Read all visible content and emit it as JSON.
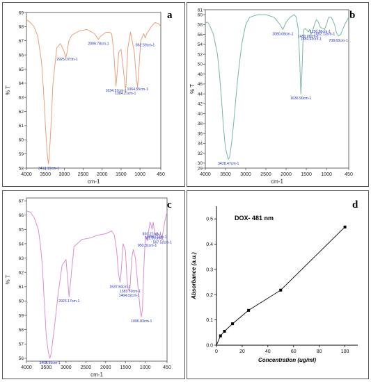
{
  "chart_data": [
    {
      "panel": "a",
      "type": "line",
      "xlabel": "cm-1",
      "ylabel": "% T",
      "xlim": [
        4000,
        450
      ],
      "ylim": [
        58,
        69
      ],
      "x_ticks": [
        4000,
        3500,
        3000,
        2500,
        2000,
        1500,
        1000,
        450
      ],
      "y_ticks": [
        58,
        59,
        60,
        61,
        62,
        63,
        64,
        65,
        66,
        67,
        68,
        69
      ],
      "series": [
        {
          "color": "#e8a07c",
          "x": [
            4000,
            3900,
            3800,
            3700,
            3600,
            3550,
            3500,
            3450,
            3420,
            3400,
            3350,
            3300,
            3200,
            3100,
            3000,
            2960,
            2925,
            2880,
            2800,
            2600,
            2400,
            2200,
            2100,
            2099,
            2050,
            1900,
            1800,
            1750,
            1700,
            1660,
            1634,
            1610,
            1560,
            1500,
            1450,
            1400,
            1384,
            1370,
            1320,
            1250,
            1150,
            1100,
            1064,
            1040,
            980,
            900,
            862,
            820,
            700,
            600,
            500,
            450
          ],
          "y": [
            68.5,
            68.3,
            68.0,
            67.3,
            65.5,
            63.5,
            61.0,
            59.0,
            58.3,
            58.7,
            61.0,
            64.0,
            66.5,
            66.8,
            66.2,
            65.8,
            66.2,
            67.0,
            67.4,
            67.7,
            67.8,
            67.5,
            67.1,
            67.1,
            67.3,
            67.6,
            67.6,
            67.5,
            66.5,
            64.8,
            63.8,
            64.5,
            66.2,
            66.4,
            65.2,
            64.0,
            63.6,
            63.8,
            66.5,
            67.6,
            66.2,
            64.5,
            63.7,
            64.5,
            67.0,
            67.5,
            67.2,
            67.5,
            68.0,
            68.3,
            68.2,
            68.0
          ]
        }
      ],
      "annotations": [
        {
          "label": "3412.19cm-1",
          "x": 3412,
          "y": 58.3
        },
        {
          "label": "2925.07cm-1",
          "x": 2925,
          "y": 66.0
        },
        {
          "label": "2099.78cm-1",
          "x": 2099,
          "y": 67.1
        },
        {
          "label": "1634.57cm-1",
          "x": 1634,
          "y": 63.8
        },
        {
          "label": "1384.21cm-1",
          "x": 1384,
          "y": 63.6
        },
        {
          "label": "1064.55cm-1",
          "x": 1064,
          "y": 63.9
        },
        {
          "label": "862.59cm-1",
          "x": 862,
          "y": 67.0
        }
      ]
    },
    {
      "panel": "b",
      "type": "line",
      "xlabel": "cm-1",
      "ylabel": "% T",
      "xlim": [
        4000,
        450
      ],
      "ylim": [
        29,
        61
      ],
      "x_ticks": [
        4000,
        3500,
        3000,
        2500,
        2000,
        1500,
        1000,
        450
      ],
      "y_ticks": [
        29,
        30,
        32,
        34,
        36,
        38,
        40,
        42,
        44,
        46,
        48,
        50,
        52,
        54,
        56,
        58,
        60,
        61
      ],
      "series": [
        {
          "color": "#7ab89a",
          "x": [
            4000,
            3950,
            3900,
            3800,
            3700,
            3650,
            3600,
            3550,
            3500,
            3440,
            3428,
            3400,
            3350,
            3300,
            3200,
            3100,
            3000,
            2900,
            2700,
            2500,
            2300,
            2150,
            2080,
            2000,
            1900,
            1800,
            1750,
            1700,
            1660,
            1636,
            1610,
            1580,
            1560,
            1520,
            1480,
            1450,
            1420,
            1400,
            1384,
            1350,
            1300,
            1250,
            1200,
            1156,
            1120,
            1080,
            1052,
            1000,
            950,
            880,
            800,
            760,
            708,
            650,
            550,
            450
          ],
          "y": [
            58.3,
            58.5,
            58.0,
            56.0,
            52.0,
            48.0,
            43.0,
            37.0,
            33.0,
            31.0,
            30.8,
            31.2,
            34.0,
            38.0,
            47.0,
            54.0,
            58.0,
            59.5,
            60.0,
            60.0,
            59.5,
            58.0,
            57.0,
            58.5,
            59.5,
            60.0,
            59.5,
            57.0,
            50.0,
            44.0,
            48.0,
            55.0,
            57.0,
            57.2,
            56.8,
            56.5,
            57.0,
            56.5,
            56.0,
            56.5,
            58.0,
            59.0,
            58.5,
            57.5,
            57.3,
            57.2,
            57.0,
            58.0,
            59.5,
            59.5,
            58.0,
            56.5,
            55.7,
            56.0,
            58.0,
            59.5
          ]
        }
      ],
      "annotations": [
        {
          "label": "3428.47cm-1",
          "x": 3428,
          "y": 30.8
        },
        {
          "label": "2080.08cm-1",
          "x": 2080,
          "y": 57.0
        },
        {
          "label": "1636.90cm-1",
          "x": 1636,
          "y": 44.0
        },
        {
          "label": "1450.08cm-1",
          "x": 1450,
          "y": 56.5
        },
        {
          "label": "1384.43cm-1",
          "x": 1384,
          "y": 56.0
        },
        {
          "label": "1156.86cm-1",
          "x": 1156,
          "y": 57.5
        },
        {
          "label": "1052.13cm-1",
          "x": 1052,
          "y": 57.0
        },
        {
          "label": "708.63cm-1",
          "x": 708,
          "y": 55.7
        }
      ]
    },
    {
      "panel": "c",
      "type": "line",
      "xlabel": "cm-1",
      "ylabel": "% T",
      "xlim": [
        4000,
        450
      ],
      "ylim": [
        55.8,
        67.2
      ],
      "x_ticks": [
        4000,
        3500,
        3000,
        2500,
        2000,
        1500,
        1000,
        450
      ],
      "y_ticks": [
        56,
        57,
        58,
        59,
        60,
        61,
        62,
        63,
        64,
        65,
        66,
        67
      ],
      "series": [
        {
          "color": "#d890d0",
          "x": [
            4000,
            3900,
            3800,
            3700,
            3650,
            3600,
            3550,
            3500,
            3450,
            3420,
            3408,
            3380,
            3300,
            3200,
            3100,
            3000,
            2960,
            2923,
            2880,
            2800,
            2600,
            2400,
            2200,
            2000,
            1850,
            1780,
            1720,
            1680,
            1637,
            1610,
            1560,
            1500,
            1460,
            1430,
            1404,
            1383,
            1340,
            1300,
            1250,
            1200,
            1150,
            1120,
            1096,
            1070,
            1040,
            1000,
            980,
            950,
            920,
            880,
            850,
            830,
            800,
            760,
            730,
            700,
            650,
            600,
            550,
            500,
            450
          ],
          "y": [
            66.3,
            66.2,
            65.8,
            65.0,
            64.0,
            62.5,
            60.0,
            57.5,
            56.5,
            56.1,
            56.0,
            56.3,
            58.0,
            60.5,
            62.5,
            62.9,
            61.5,
            60.3,
            61.5,
            63.8,
            64.3,
            64.4,
            64.6,
            64.7,
            64.9,
            64.6,
            63.5,
            62.0,
            61.3,
            62.0,
            64.0,
            63.5,
            61.5,
            60.8,
            60.7,
            61.0,
            63.0,
            63.6,
            63.0,
            61.5,
            60.0,
            59.2,
            58.9,
            59.5,
            62.0,
            64.5,
            64.5,
            64.2,
            64.8,
            65.5,
            65.3,
            65.0,
            65.5,
            64.7,
            64.6,
            64.8,
            64.6,
            64.3,
            64.8,
            65.7,
            66.2
          ]
        }
      ],
      "annotations": [
        {
          "label": "3408.95cm-1",
          "x": 3408,
          "y": 56.0
        },
        {
          "label": "2923.17cm-1",
          "x": 2923,
          "y": 60.3
        },
        {
          "label": "1637.84cm-1",
          "x": 1637,
          "y": 61.3
        },
        {
          "label": "1404.02cm-1",
          "x": 1404,
          "y": 60.7
        },
        {
          "label": "1383.70cm-1",
          "x": 1383,
          "y": 61.0
        },
        {
          "label": "1096.83cm-1",
          "x": 1096,
          "y": 58.9
        },
        {
          "label": "950.31cm-1",
          "x": 950,
          "y": 64.2
        },
        {
          "label": "830.27cm-1",
          "x": 830,
          "y": 65.0
        },
        {
          "label": "781.55cm-1",
          "x": 781,
          "y": 64.7
        },
        {
          "label": "698.71cm-1",
          "x": 698,
          "y": 64.8
        },
        {
          "label": "567.52cm-1",
          "x": 567,
          "y": 64.4
        }
      ]
    },
    {
      "panel": "d",
      "type": "line",
      "title": "DOX- 481 nm",
      "xlabel": "Concentration (ug/ml)",
      "ylabel": "Absorbance (a.u.)",
      "xlim": [
        0,
        110
      ],
      "ylim": [
        0,
        0.55
      ],
      "x_ticks": [
        0,
        20,
        40,
        60,
        80,
        100
      ],
      "y_ticks": [
        0,
        0.1,
        0.2,
        0.3,
        0.4,
        0.5
      ],
      "y_tick_labels": [
        "0.0",
        "0.1",
        "0.2",
        "0.3",
        "0.4",
        "0.5"
      ],
      "series": [
        {
          "color": "#000000",
          "x": [
            0,
            3.125,
            6.25,
            12.5,
            25,
            50,
            100
          ],
          "y": [
            0.0,
            0.037,
            0.055,
            0.085,
            0.138,
            0.218,
            0.468
          ]
        }
      ]
    }
  ],
  "panels": {
    "a": {
      "letter": "a"
    },
    "b": {
      "letter": "b"
    },
    "c": {
      "letter": "c"
    },
    "d": {
      "letter": "d"
    }
  }
}
